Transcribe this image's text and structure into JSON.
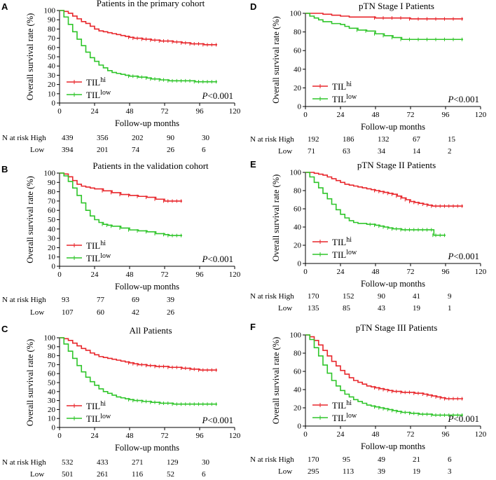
{
  "figure": {
    "colors": {
      "high": "#e8262b",
      "low": "#2fc52a",
      "axis": "#000000"
    },
    "legend": {
      "base": "TIL",
      "high_sup": "hi",
      "low_sup": "low"
    },
    "xlabel": "Follow-up months",
    "ylabel": "Overall survival rate (%)",
    "risk_high_label": "N at risk High",
    "risk_low_label": "Low"
  },
  "chart_data": [
    {
      "id": "A",
      "type": "line",
      "title": "Patients in the primary cohort",
      "xlabel": "Follow-up months",
      "ylabel": "Overall survival rate (%)",
      "xlim": [
        0,
        120
      ],
      "ylim": [
        0,
        100
      ],
      "xticks": [
        "0",
        "24",
        "48",
        "72",
        "96",
        "120"
      ],
      "yticks": [
        "0",
        "10",
        "20",
        "30",
        "40",
        "50",
        "60",
        "70",
        "80",
        "90",
        "100"
      ],
      "p_italic": "P",
      "p_rest": "<0.001",
      "series": [
        {
          "name": "TIL hi",
          "x": [
            0,
            3,
            6,
            9,
            12,
            15,
            18,
            21,
            24,
            27,
            30,
            33,
            36,
            39,
            42,
            45,
            48,
            51,
            54,
            57,
            60,
            63,
            66,
            69,
            72,
            75,
            78,
            81,
            84,
            87,
            90,
            93,
            96,
            99,
            102,
            105,
            108
          ],
          "y": [
            100,
            99,
            97,
            94,
            91,
            88,
            86,
            83,
            80,
            78,
            77,
            76,
            75,
            74,
            73,
            72,
            71,
            70,
            70,
            69,
            69,
            68,
            68,
            67,
            67,
            67,
            66,
            66,
            65,
            65,
            64,
            64,
            64,
            63,
            63,
            63,
            63
          ]
        },
        {
          "name": "TIL low",
          "x": [
            0,
            3,
            6,
            9,
            12,
            15,
            18,
            21,
            24,
            27,
            30,
            33,
            36,
            39,
            42,
            45,
            48,
            51,
            54,
            57,
            60,
            63,
            66,
            69,
            72,
            75,
            78,
            81,
            84,
            87,
            90,
            93,
            96,
            99,
            102,
            105,
            108
          ],
          "y": [
            100,
            93,
            85,
            77,
            69,
            62,
            55,
            49,
            45,
            41,
            38,
            35,
            33,
            32,
            31,
            30,
            29,
            29,
            28,
            28,
            27,
            26,
            26,
            25,
            25,
            24,
            24,
            24,
            24,
            24,
            24,
            23,
            23,
            23,
            23,
            23,
            23
          ]
        }
      ],
      "risk": {
        "times": [
          "0",
          "24",
          "48",
          "72",
          "96"
        ],
        "high": [
          "439",
          "356",
          "202",
          "90",
          "30"
        ],
        "low": [
          "394",
          "201",
          "74",
          "26",
          "6"
        ]
      }
    },
    {
      "id": "B",
      "type": "line",
      "title": "Patients in the validation cohort",
      "xlabel": "Follow-up months",
      "ylabel": "Overall survival rate (%)",
      "xlim": [
        0,
        120
      ],
      "ylim": [
        0,
        100
      ],
      "xticks": [
        "0",
        "24",
        "48",
        "72",
        "96",
        "120"
      ],
      "yticks": [
        "0",
        "10",
        "20",
        "30",
        "40",
        "50",
        "60",
        "70",
        "80",
        "90",
        "100"
      ],
      "p_italic": "P",
      "p_rest": "<0.001",
      "series": [
        {
          "name": "TIL hi",
          "x": [
            0,
            3,
            6,
            9,
            12,
            15,
            18,
            21,
            24,
            30,
            36,
            42,
            48,
            54,
            60,
            66,
            72,
            75,
            78,
            81,
            84
          ],
          "y": [
            100,
            99,
            96,
            92,
            88,
            86,
            85,
            84,
            83,
            81,
            79,
            77,
            76,
            75,
            74,
            72,
            70,
            70,
            70,
            70,
            70
          ]
        },
        {
          "name": "TIL low",
          "x": [
            0,
            3,
            6,
            9,
            12,
            15,
            18,
            21,
            24,
            27,
            30,
            33,
            36,
            42,
            48,
            54,
            60,
            66,
            72,
            75,
            78,
            81,
            84
          ],
          "y": [
            100,
            97,
            91,
            84,
            76,
            68,
            60,
            54,
            50,
            47,
            45,
            44,
            43,
            41,
            39,
            38,
            37,
            35,
            34,
            33,
            33,
            33,
            33
          ]
        }
      ],
      "risk": {
        "times": [
          "0",
          "24",
          "48",
          "72"
        ],
        "high": [
          "93",
          "77",
          "69",
          "39"
        ],
        "low": [
          "107",
          "60",
          "42",
          "26"
        ]
      }
    },
    {
      "id": "C",
      "type": "line",
      "title": "All Patients",
      "xlabel": "Follow-up months",
      "ylabel": "Overall survival rate (%)",
      "xlim": [
        0,
        120
      ],
      "ylim": [
        0,
        100
      ],
      "xticks": [
        "0",
        "24",
        "48",
        "72",
        "96",
        "120"
      ],
      "yticks": [
        "0",
        "10",
        "20",
        "30",
        "40",
        "50",
        "60",
        "70",
        "80",
        "90",
        "100"
      ],
      "p_italic": "P",
      "p_rest": "<0.001",
      "series": [
        {
          "name": "TIL hi",
          "x": [
            0,
            3,
            6,
            9,
            12,
            15,
            18,
            21,
            24,
            27,
            30,
            33,
            36,
            39,
            42,
            45,
            48,
            51,
            54,
            57,
            60,
            63,
            66,
            69,
            72,
            75,
            78,
            81,
            84,
            87,
            90,
            93,
            96,
            99,
            102,
            105,
            108
          ],
          "y": [
            100,
            99,
            97,
            94,
            91,
            88,
            86,
            83,
            81,
            79,
            78,
            77,
            76,
            75,
            74,
            73,
            72,
            71,
            70,
            70,
            69,
            69,
            68,
            68,
            68,
            67,
            67,
            67,
            66,
            66,
            65,
            65,
            64,
            64,
            64,
            64,
            64
          ]
        },
        {
          "name": "TIL low",
          "x": [
            0,
            3,
            6,
            9,
            12,
            15,
            18,
            21,
            24,
            27,
            30,
            33,
            36,
            39,
            42,
            45,
            48,
            51,
            54,
            57,
            60,
            63,
            66,
            69,
            72,
            75,
            78,
            81,
            84,
            87,
            90,
            93,
            96,
            99,
            102,
            105,
            108
          ],
          "y": [
            100,
            93,
            85,
            77,
            69,
            62,
            56,
            51,
            47,
            43,
            40,
            38,
            36,
            34,
            33,
            32,
            31,
            30,
            30,
            29,
            29,
            28,
            28,
            27,
            27,
            27,
            26,
            26,
            26,
            26,
            26,
            26,
            26,
            26,
            26,
            26,
            26
          ]
        }
      ],
      "risk": {
        "times": [
          "0",
          "24",
          "48",
          "72",
          "96"
        ],
        "high": [
          "532",
          "433",
          "271",
          "129",
          "30"
        ],
        "low": [
          "501",
          "261",
          "116",
          "52",
          "6"
        ]
      }
    },
    {
      "id": "D",
      "type": "line",
      "title": "pTN Stage I Patients",
      "xlabel": "Follow-up months",
      "ylabel": "Overall survival rate (%)",
      "xlim": [
        0,
        120
      ],
      "ylim": [
        0,
        100
      ],
      "xticks": [
        "0",
        "24",
        "48",
        "72",
        "96",
        "120"
      ],
      "yticks": [
        "0",
        "20",
        "40",
        "60",
        "80",
        "100"
      ],
      "p_italic": "P",
      "p_rest": "<0.001",
      "series": [
        {
          "name": "TIL hi",
          "x": [
            0,
            6,
            12,
            18,
            24,
            30,
            36,
            42,
            48,
            54,
            60,
            66,
            72,
            78,
            84,
            90,
            96,
            102,
            108
          ],
          "y": [
            100,
            100,
            99,
            98,
            97,
            96,
            96,
            96,
            95,
            95,
            95,
            95,
            94,
            94,
            94,
            94,
            94,
            94,
            94
          ]
        },
        {
          "name": "TIL low",
          "x": [
            0,
            3,
            6,
            9,
            12,
            18,
            24,
            27,
            30,
            36,
            42,
            48,
            54,
            60,
            66,
            72,
            78,
            84,
            90,
            96,
            102,
            108
          ],
          "y": [
            100,
            97,
            95,
            93,
            91,
            89,
            88,
            86,
            84,
            82,
            81,
            78,
            76,
            74,
            72,
            72,
            72,
            72,
            72,
            72,
            72,
            72
          ]
        }
      ],
      "risk": {
        "times": [
          "0",
          "24",
          "48",
          "72",
          "96"
        ],
        "high": [
          "192",
          "186",
          "132",
          "67",
          "15"
        ],
        "low": [
          "71",
          "63",
          "34",
          "14",
          "2"
        ]
      }
    },
    {
      "id": "E",
      "type": "line",
      "title": "pTN Stage II Patients",
      "xlabel": "Follow-up months",
      "ylabel": "Overall survival rate (%)",
      "xlim": [
        0,
        120
      ],
      "ylim": [
        0,
        100
      ],
      "xticks": [
        "0",
        "24",
        "48",
        "72",
        "96",
        "120"
      ],
      "yticks": [
        "0",
        "20",
        "40",
        "60",
        "80",
        "100"
      ],
      "p_italic": "P",
      "p_rest": "<0.001",
      "series": [
        {
          "name": "TIL hi",
          "x": [
            0,
            3,
            6,
            9,
            12,
            15,
            18,
            21,
            24,
            27,
            30,
            33,
            36,
            39,
            42,
            45,
            48,
            51,
            54,
            57,
            60,
            63,
            66,
            69,
            72,
            75,
            78,
            81,
            84,
            87,
            90,
            93,
            96,
            99,
            102,
            105,
            108
          ],
          "y": [
            100,
            100,
            99,
            98,
            97,
            95,
            93,
            91,
            89,
            87,
            86,
            85,
            84,
            83,
            82,
            81,
            80,
            79,
            78,
            77,
            76,
            74,
            72,
            70,
            68,
            67,
            66,
            65,
            64,
            63,
            63,
            63,
            63,
            63,
            63,
            63,
            63
          ]
        },
        {
          "name": "TIL low",
          "x": [
            0,
            3,
            6,
            9,
            12,
            15,
            18,
            21,
            24,
            27,
            30,
            33,
            36,
            39,
            42,
            45,
            48,
            51,
            54,
            57,
            60,
            63,
            66,
            69,
            72,
            75,
            78,
            81,
            84,
            87,
            88,
            90,
            93,
            96
          ],
          "y": [
            100,
            95,
            89,
            83,
            77,
            71,
            65,
            59,
            54,
            50,
            47,
            45,
            44,
            44,
            43,
            43,
            42,
            41,
            40,
            39,
            38,
            38,
            37,
            37,
            37,
            37,
            37,
            37,
            37,
            37,
            31,
            31,
            31,
            31
          ]
        }
      ],
      "risk": {
        "times": [
          "0",
          "24",
          "48",
          "72",
          "96"
        ],
        "high": [
          "170",
          "152",
          "90",
          "41",
          "9"
        ],
        "low": [
          "135",
          "85",
          "43",
          "19",
          "1"
        ]
      }
    },
    {
      "id": "F",
      "type": "line",
      "title": "pTN Stage III Patients",
      "xlabel": "Follow-up months",
      "ylabel": "Overall survival rate (%)",
      "xlim": [
        0,
        120
      ],
      "ylim": [
        0,
        100
      ],
      "xticks": [
        "0",
        "24",
        "48",
        "72",
        "96",
        "120"
      ],
      "yticks": [
        "0",
        "20",
        "40",
        "60",
        "80",
        "100"
      ],
      "p_italic": "P",
      "p_rest": "<0.001",
      "series": [
        {
          "name": "TIL hi",
          "x": [
            0,
            3,
            6,
            9,
            12,
            15,
            18,
            21,
            24,
            27,
            30,
            33,
            36,
            39,
            42,
            45,
            48,
            51,
            54,
            57,
            60,
            63,
            66,
            69,
            72,
            75,
            78,
            81,
            84,
            87,
            90,
            93,
            96,
            99,
            102,
            105,
            108
          ],
          "y": [
            100,
            98,
            94,
            89,
            83,
            77,
            71,
            66,
            61,
            57,
            53,
            50,
            48,
            46,
            44,
            43,
            42,
            41,
            40,
            39,
            38,
            38,
            37,
            37,
            37,
            36,
            36,
            35,
            34,
            33,
            32,
            31,
            30,
            30,
            30,
            30,
            30
          ]
        },
        {
          "name": "TIL low",
          "x": [
            0,
            3,
            6,
            9,
            12,
            15,
            18,
            21,
            24,
            27,
            30,
            33,
            36,
            39,
            42,
            45,
            48,
            51,
            54,
            57,
            60,
            63,
            66,
            69,
            72,
            75,
            78,
            81,
            84,
            87,
            90,
            93,
            96,
            99,
            102,
            105,
            108
          ],
          "y": [
            100,
            95,
            86,
            77,
            67,
            58,
            50,
            44,
            39,
            35,
            32,
            29,
            27,
            25,
            23,
            22,
            21,
            20,
            19,
            18,
            17,
            16,
            15,
            15,
            14,
            14,
            13,
            13,
            13,
            12,
            12,
            12,
            12,
            12,
            12,
            12,
            12
          ]
        }
      ],
      "risk": {
        "times": [
          "0",
          "24",
          "48",
          "72",
          "96"
        ],
        "high": [
          "170",
          "95",
          "49",
          "21",
          "6"
        ],
        "low": [
          "295",
          "113",
          "39",
          "19",
          "3"
        ]
      }
    }
  ]
}
